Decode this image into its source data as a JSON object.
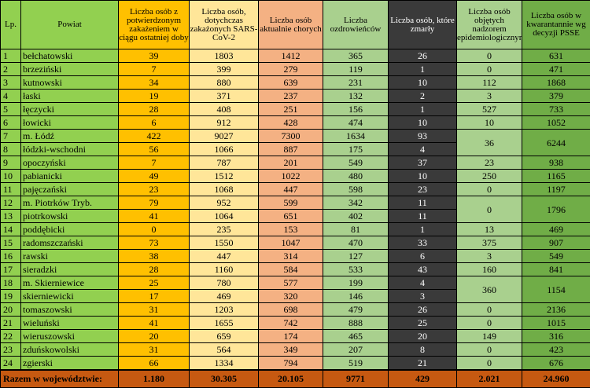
{
  "headers": {
    "lp": "Lp.",
    "powiat": "Powiat",
    "new_cases": "Liczba osób z potwierdzonym zakażeniem w ciągu ostatniej doby",
    "total_infected": "Liczba osób, dotychczas zakażonych SARS-CoV-2",
    "active": "Liczba osób aktualnie chorych",
    "recovered": "Liczba ozdrowieńców",
    "deaths": "Liczba osób, które zmarły",
    "supervised": "Liczba osób objętych nadzorem epidemiologicznym",
    "quarantine": "Liczba osób w kwarantannie wg decyzji PSSE"
  },
  "rows": [
    {
      "lp": "1",
      "name": "bełchatowski",
      "new": "39",
      "total": "1803",
      "active": "1412",
      "recovered": "365",
      "deaths": "26",
      "supervised": "0",
      "quarantine": "631"
    },
    {
      "lp": "2",
      "name": "brzeziński",
      "new": "7",
      "total": "399",
      "active": "279",
      "recovered": "119",
      "deaths": "1",
      "supervised": "0",
      "quarantine": "471"
    },
    {
      "lp": "3",
      "name": "kutnowski",
      "new": "34",
      "total": "880",
      "active": "639",
      "recovered": "231",
      "deaths": "10",
      "supervised": "112",
      "quarantine": "1868"
    },
    {
      "lp": "4",
      "name": "łaski",
      "new": "19",
      "total": "371",
      "active": "237",
      "recovered": "132",
      "deaths": "2",
      "supervised": "3",
      "quarantine": "379"
    },
    {
      "lp": "5",
      "name": "łęczycki",
      "new": "28",
      "total": "408",
      "active": "251",
      "recovered": "156",
      "deaths": "1",
      "supervised": "527",
      "quarantine": "733"
    },
    {
      "lp": "6",
      "name": "łowicki",
      "new": "6",
      "total": "912",
      "active": "428",
      "recovered": "474",
      "deaths": "10",
      "supervised": "10",
      "quarantine": "1052"
    },
    {
      "lp": "7",
      "name": "m. Łódź",
      "new": "422",
      "total": "9027",
      "active": "7300",
      "recovered": "1634",
      "deaths": "93",
      "supervised": "36",
      "quarantine": "6244"
    },
    {
      "lp": "8",
      "name": "łódzki-wschodni",
      "new": "56",
      "total": "1066",
      "active": "887",
      "recovered": "175",
      "deaths": "4",
      "supervised": null,
      "quarantine": null
    },
    {
      "lp": "9",
      "name": "opoczyński",
      "new": "7",
      "total": "787",
      "active": "201",
      "recovered": "549",
      "deaths": "37",
      "supervised": "23",
      "quarantine": "938"
    },
    {
      "lp": "10",
      "name": "pabianicki",
      "new": "49",
      "total": "1512",
      "active": "1022",
      "recovered": "480",
      "deaths": "10",
      "supervised": "250",
      "quarantine": "1165"
    },
    {
      "lp": "11",
      "name": "pajęczański",
      "new": "23",
      "total": "1068",
      "active": "447",
      "recovered": "598",
      "deaths": "23",
      "supervised": "0",
      "quarantine": "1197"
    },
    {
      "lp": "12",
      "name": "m. Piotrków Tryb.",
      "new": "79",
      "total": "952",
      "active": "599",
      "recovered": "342",
      "deaths": "11",
      "supervised": "0",
      "quarantine": "1796"
    },
    {
      "lp": "13",
      "name": "piotrkowski",
      "new": "41",
      "total": "1064",
      "active": "651",
      "recovered": "402",
      "deaths": "11",
      "supervised": null,
      "quarantine": null
    },
    {
      "lp": "14",
      "name": "poddębicki",
      "new": "0",
      "total": "235",
      "active": "153",
      "recovered": "81",
      "deaths": "1",
      "supervised": "13",
      "quarantine": "469"
    },
    {
      "lp": "15",
      "name": "radomszczański",
      "new": "73",
      "total": "1550",
      "active": "1047",
      "recovered": "470",
      "deaths": "33",
      "supervised": "375",
      "quarantine": "907"
    },
    {
      "lp": "16",
      "name": "rawski",
      "new": "38",
      "total": "447",
      "active": "314",
      "recovered": "127",
      "deaths": "6",
      "supervised": "3",
      "quarantine": "549"
    },
    {
      "lp": "17",
      "name": "sieradzki",
      "new": "28",
      "total": "1160",
      "active": "584",
      "recovered": "533",
      "deaths": "43",
      "supervised": "160",
      "quarantine": "841"
    },
    {
      "lp": "18",
      "name": "m. Skierniewice",
      "new": "25",
      "total": "780",
      "active": "577",
      "recovered": "199",
      "deaths": "4",
      "supervised": "360",
      "quarantine": "1154"
    },
    {
      "lp": "19",
      "name": "skierniewicki",
      "new": "17",
      "total": "469",
      "active": "320",
      "recovered": "146",
      "deaths": "3",
      "supervised": null,
      "quarantine": null
    },
    {
      "lp": "20",
      "name": "tomaszowski",
      "new": "31",
      "total": "1203",
      "active": "698",
      "recovered": "479",
      "deaths": "26",
      "supervised": "0",
      "quarantine": "2136"
    },
    {
      "lp": "21",
      "name": "wieluński",
      "new": "41",
      "total": "1655",
      "active": "742",
      "recovered": "888",
      "deaths": "25",
      "supervised": "0",
      "quarantine": "1015"
    },
    {
      "lp": "22",
      "name": "wieruszowski",
      "new": "20",
      "total": "659",
      "active": "174",
      "recovered": "465",
      "deaths": "20",
      "supervised": "149",
      "quarantine": "316"
    },
    {
      "lp": "23",
      "name": "zduńskowolski",
      "new": "31",
      "total": "564",
      "active": "349",
      "recovered": "207",
      "deaths": "8",
      "supervised": "0",
      "quarantine": "423"
    },
    {
      "lp": "24",
      "name": "zgierski",
      "new": "66",
      "total": "1334",
      "active": "794",
      "recovered": "519",
      "deaths": "21",
      "supervised": "0",
      "quarantine": "676"
    }
  ],
  "totals": {
    "label": "Razem w województwie:",
    "new": "1.180",
    "total": "30.305",
    "active": "20.105",
    "recovered": "9771",
    "deaths": "429",
    "supervised": "2.021",
    "quarantine": "24.960"
  }
}
